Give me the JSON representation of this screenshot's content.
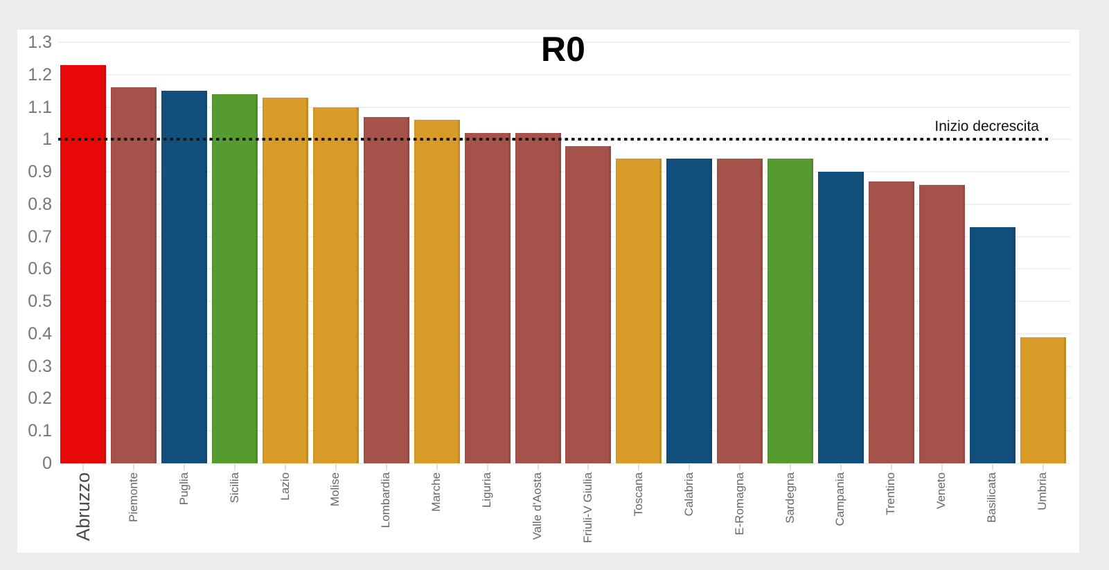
{
  "theme": {
    "page_background": "#ececec",
    "card_background": "#ffffff",
    "gridline_color": "#f0f0f0",
    "axis_text_color": "#767676",
    "title_color": "#000000"
  },
  "chart_data": {
    "type": "bar",
    "title": "R0",
    "categories": [
      "Abruzzo",
      "Piemonte",
      "Puglia",
      "Sicilia",
      "Lazio",
      "Molise",
      "Lombardia",
      "Marche",
      "Liguria",
      "Valle d'Aosta",
      "Friuli-V Giulia",
      "Toscana",
      "Calabria",
      "E-Romagna",
      "Sardegna",
      "Campania",
      "Trentino",
      "Veneto",
      "Basilicata",
      "Umbria"
    ],
    "values": [
      1.23,
      1.16,
      1.15,
      1.14,
      1.13,
      1.1,
      1.07,
      1.06,
      1.02,
      1.02,
      0.98,
      0.94,
      0.94,
      0.94,
      0.94,
      0.9,
      0.87,
      0.86,
      0.73,
      0.39
    ],
    "bar_color_keys": [
      "red",
      "brown",
      "blue",
      "green",
      "gold",
      "gold",
      "brown",
      "gold",
      "brown",
      "brown",
      "brown",
      "gold",
      "blue",
      "brown",
      "green",
      "blue",
      "brown",
      "brown",
      "blue",
      "gold"
    ],
    "palette": {
      "red": "#e90808",
      "brown": "#a5524a",
      "blue": "#134f7d",
      "green": "#569b2f",
      "gold": "#d89b28"
    },
    "xlabel": "",
    "ylabel": "",
    "ylim": [
      0,
      1.3
    ],
    "ytick_labels": [
      "1.3",
      "1.2",
      "1.1",
      "1",
      "0.9",
      "0.8",
      "0.7",
      "0.6",
      "0.5",
      "0.4",
      "0.3",
      "0.2",
      "0.1",
      "0"
    ],
    "ytick_values": [
      1.3,
      1.2,
      1.1,
      1.0,
      0.9,
      0.8,
      0.7,
      0.6,
      0.5,
      0.4,
      0.3,
      0.2,
      0.1,
      0
    ],
    "grid": true,
    "legend": "none",
    "x_labels_rotated_90": true,
    "highlighted_category": "Abruzzo",
    "reference_line": {
      "value": 1,
      "label": "Inizio decrescita",
      "style": "dotted",
      "color": "#151515"
    }
  }
}
